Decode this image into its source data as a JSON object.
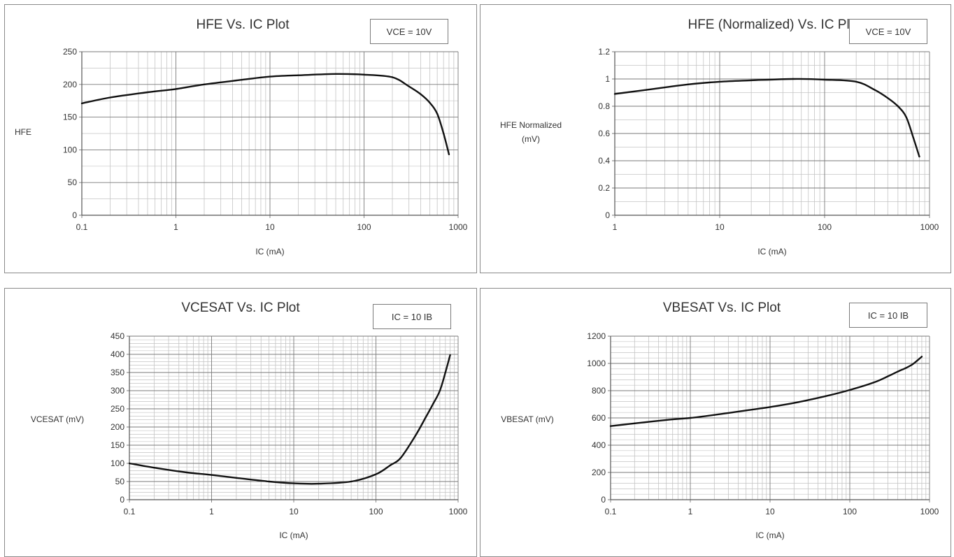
{
  "chart_data": [
    {
      "type": "line",
      "title": "HFE Vs. IC Plot",
      "note": "VCE = 10V",
      "xlabel": "IC (mA)",
      "ylabel": [
        "HFE"
      ],
      "xscale": "log",
      "xlim": [
        0.1,
        1000
      ],
      "ylim": [
        0,
        250
      ],
      "xticks": [
        "0.1",
        "1",
        "10",
        "100",
        "1000"
      ],
      "yticks": [
        "0",
        "50",
        "100",
        "150",
        "200",
        "250"
      ],
      "grid": true,
      "x": [
        0.1,
        0.2,
        0.5,
        1,
        2,
        5,
        10,
        20,
        50,
        100,
        200,
        300,
        400,
        500,
        600,
        700,
        800
      ],
      "y": [
        171,
        180,
        188,
        193,
        200,
        207,
        212,
        214,
        216,
        215,
        211,
        197,
        185,
        172,
        155,
        125,
        93
      ]
    },
    {
      "type": "line",
      "title": "HFE (Normalized) Vs. IC Plot",
      "note": "VCE = 10V",
      "xlabel": "IC (mA)",
      "ylabel": [
        "HFE Normalized",
        "(mV)"
      ],
      "xscale": "log",
      "xlim": [
        1,
        1000
      ],
      "ylim": [
        0,
        1.2
      ],
      "xticks": [
        "1",
        "10",
        "100",
        "1000"
      ],
      "yticks": [
        "0",
        "0.2",
        "0.4",
        "0.6",
        "0.8",
        "1",
        "1.2"
      ],
      "grid": true,
      "x": [
        1,
        2,
        5,
        10,
        20,
        50,
        100,
        200,
        300,
        400,
        500,
        600,
        700,
        800
      ],
      "y": [
        0.89,
        0.92,
        0.96,
        0.98,
        0.99,
        1.0,
        0.995,
        0.98,
        0.92,
        0.86,
        0.8,
        0.72,
        0.57,
        0.43
      ]
    },
    {
      "type": "line",
      "title": "VCESAT Vs. IC Plot",
      "note": "IC = 10 IB",
      "xlabel": "IC (mA)",
      "ylabel": [
        "VCESAT (mV)"
      ],
      "xscale": "log",
      "xlim": [
        0.1,
        1000
      ],
      "ylim": [
        0,
        450
      ],
      "xticks": [
        "0.1",
        "1",
        "10",
        "100",
        "1000"
      ],
      "yticks": [
        "0",
        "50",
        "100",
        "150",
        "200",
        "250",
        "300",
        "350",
        "400",
        "450"
      ],
      "grid": true,
      "x": [
        0.1,
        0.2,
        0.5,
        1,
        2,
        5,
        10,
        20,
        50,
        100,
        150,
        200,
        300,
        400,
        500,
        600,
        700,
        800
      ],
      "y": [
        100,
        88,
        75,
        68,
        60,
        50,
        45,
        44,
        50,
        70,
        95,
        115,
        175,
        225,
        265,
        300,
        350,
        398
      ]
    },
    {
      "type": "line",
      "title": "VBESAT Vs. IC Plot",
      "note": "IC = 10 IB",
      "xlabel": "IC (mA)",
      "ylabel": [
        "VBESAT (mV)"
      ],
      "xscale": "log",
      "xlim": [
        0.1,
        1000
      ],
      "ylim": [
        0,
        1200
      ],
      "xticks": [
        "0.1",
        "1",
        "10",
        "100",
        "1000"
      ],
      "yticks": [
        "0",
        "200",
        "400",
        "600",
        "800",
        "1000",
        "1200"
      ],
      "grid": true,
      "x": [
        0.1,
        0.2,
        0.5,
        1,
        2,
        5,
        10,
        20,
        50,
        100,
        200,
        300,
        400,
        500,
        600,
        700,
        800
      ],
      "y": [
        540,
        560,
        585,
        600,
        622,
        655,
        680,
        710,
        760,
        805,
        860,
        905,
        940,
        965,
        990,
        1020,
        1050
      ]
    }
  ]
}
